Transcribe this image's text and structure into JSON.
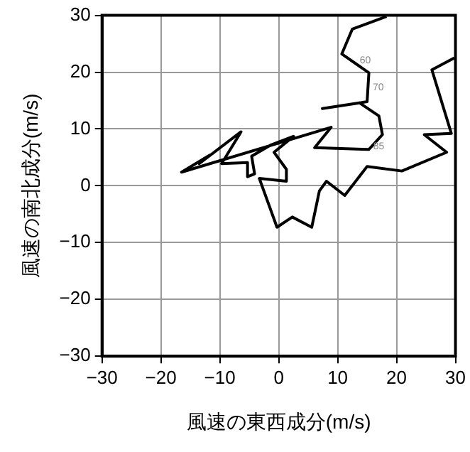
{
  "chart_data": {
    "type": "line",
    "xlabel": "風速の東西成分(m/s)",
    "ylabel": "風速の南北成分(m/s)",
    "series": [
      {
        "color": "#000000",
        "x": [
          29.8,
          26.0,
          29.3,
          24.7,
          28.5,
          20.9,
          15.0,
          11.2,
          8.1,
          6.9,
          5.6,
          2.3,
          -0.3,
          -3.3,
          1.3,
          1.3,
          -0.8,
          2.5,
          -1.3,
          -4.6,
          -4.1,
          -5.3,
          -5.3,
          -9.7,
          -6.4,
          -13.5,
          -11.7,
          -16.5,
          8.9,
          6.1,
          15.3,
          17.6,
          17.0,
          13.7,
          7.4,
          15.0,
          15.3,
          10.7,
          12.5,
          18.3
        ],
        "values": [
          22.5,
          20.4,
          9.2,
          9.0,
          5.9,
          2.6,
          3.4,
          -1.7,
          0.8,
          -0.9,
          -7.3,
          -5.5,
          -7.3,
          1.3,
          0.8,
          2.9,
          5.9,
          8.7,
          7.2,
          5.2,
          2.1,
          1.6,
          4.1,
          3.9,
          9.5,
          3.9,
          5.4,
          2.4,
          10.3,
          6.7,
          6.4,
          9.0,
          12.3,
          14.6,
          13.6,
          14.8,
          19.9,
          23.2,
          27.6,
          29.8
        ]
      }
    ],
    "annotations": [
      {
        "text": "60",
        "x": 13.0,
        "y": 21.6
      },
      {
        "text": "70",
        "x": 15.2,
        "y": 16.8
      },
      {
        "text": "85",
        "x": 15.3,
        "y": 6.4
      }
    ],
    "xlim": [
      -30,
      30
    ],
    "ylim": [
      -30,
      30
    ],
    "xticks": [
      -30,
      -20,
      -10,
      0,
      10,
      20,
      30
    ],
    "yticks": [
      -30,
      -20,
      -10,
      0,
      10,
      20,
      30
    ],
    "grid": true,
    "legend": false,
    "marker": "none",
    "line_style": "solid"
  }
}
